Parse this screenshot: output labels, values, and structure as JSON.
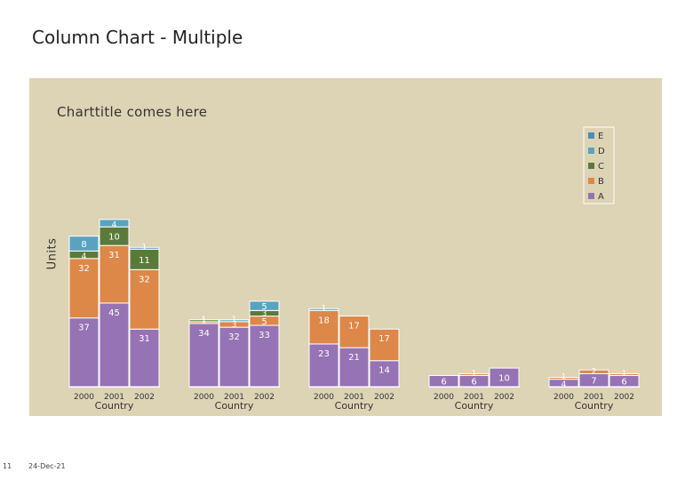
{
  "page": {
    "title": "Column Chart - Multiple",
    "page_number": "11",
    "date": "24-Dec-21"
  },
  "colors": {
    "A": "#9673b4",
    "B": "#dd8748",
    "C": "#5a7a3a",
    "D": "#5aa3c0",
    "E": "#4a90b4",
    "panel": "#ddd3b5",
    "text": "#333333"
  },
  "chart_data": {
    "type": "bar",
    "stacked": true,
    "title": "Charttitle comes here",
    "ylabel": "Units",
    "xlabel": "Country",
    "ylim": [
      0,
      100
    ],
    "legend_position": "top-right",
    "legend": [
      "E",
      "D",
      "C",
      "B",
      "A"
    ],
    "groups": [
      {
        "label": "Country",
        "categories": [
          "2000",
          "2001",
          "2002"
        ],
        "series": [
          {
            "name": "A",
            "values": [
              37,
              45,
              31
            ]
          },
          {
            "name": "B",
            "values": [
              32,
              31,
              32
            ]
          },
          {
            "name": "C",
            "values": [
              4,
              10,
              11
            ]
          },
          {
            "name": "D",
            "values": [
              8,
              4,
              1
            ]
          },
          {
            "name": "E",
            "values": [
              0,
              0,
              0
            ]
          }
        ]
      },
      {
        "label": "Country",
        "categories": [
          "2000",
          "2001",
          "2002"
        ],
        "series": [
          {
            "name": "A",
            "values": [
              34,
              32,
              33
            ]
          },
          {
            "name": "B",
            "values": [
              1,
              3,
              5
            ]
          },
          {
            "name": "C",
            "values": [
              1,
              0,
              3
            ]
          },
          {
            "name": "D",
            "values": [
              0,
              1,
              5
            ]
          },
          {
            "name": "E",
            "values": [
              0,
              0,
              0
            ]
          }
        ]
      },
      {
        "label": "Country",
        "categories": [
          "2000",
          "2001",
          "2002"
        ],
        "series": [
          {
            "name": "A",
            "values": [
              23,
              21,
              14
            ]
          },
          {
            "name": "B",
            "values": [
              18,
              17,
              17
            ]
          },
          {
            "name": "C",
            "values": [
              0,
              0,
              0
            ]
          },
          {
            "name": "D",
            "values": [
              1,
              0,
              0
            ]
          },
          {
            "name": "E",
            "values": [
              0,
              0,
              0
            ]
          }
        ]
      },
      {
        "label": "Country",
        "categories": [
          "2000",
          "2001",
          "2002"
        ],
        "series": [
          {
            "name": "A",
            "values": [
              6,
              6,
              10
            ]
          },
          {
            "name": "B",
            "values": [
              0,
              1,
              0
            ]
          },
          {
            "name": "C",
            "values": [
              0,
              0,
              0
            ]
          },
          {
            "name": "D",
            "values": [
              0,
              0,
              0
            ]
          },
          {
            "name": "E",
            "values": [
              0,
              0,
              0
            ]
          }
        ]
      },
      {
        "label": "Country",
        "categories": [
          "2000",
          "2001",
          "2002"
        ],
        "series": [
          {
            "name": "A",
            "values": [
              4,
              7,
              6
            ]
          },
          {
            "name": "B",
            "values": [
              1,
              2,
              1
            ]
          },
          {
            "name": "C",
            "values": [
              0,
              0,
              0
            ]
          },
          {
            "name": "D",
            "values": [
              0,
              0,
              0
            ]
          },
          {
            "name": "E",
            "values": [
              0,
              0,
              0
            ]
          }
        ]
      }
    ]
  }
}
